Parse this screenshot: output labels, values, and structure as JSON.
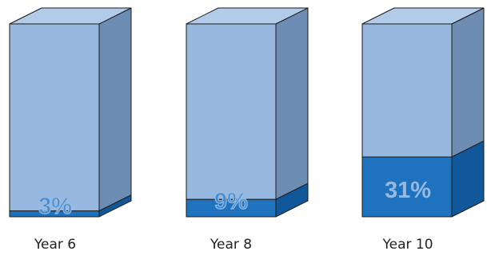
{
  "chart_data": {
    "type": "bar",
    "categories": [
      "Year 6",
      "Year 8",
      "Year 10"
    ],
    "values": [
      3,
      9,
      31
    ],
    "value_labels": [
      "3%",
      "9%",
      "31%"
    ],
    "ylim": [
      0,
      100
    ],
    "title": "",
    "xlabel": "",
    "ylabel": "",
    "grid": false,
    "legend": "none"
  },
  "colors": {
    "empty_front": "#97b9e0",
    "empty_top": "#b1cbe8",
    "empty_side": "#6d8cb1",
    "fill_front": "#1f72be",
    "fill_top": "#2f84cd",
    "fill_side": "#10589a",
    "outline": "#1a1a1a",
    "label_on_fill": "#97b9e0",
    "label_outlined": "#3f8dd2"
  }
}
